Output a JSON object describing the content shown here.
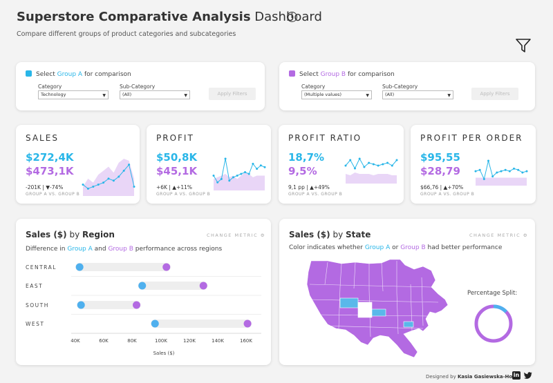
{
  "header": {
    "title_bold": "Superstore Comparative Analysis",
    "title_light": "Dashboard",
    "info_icon": "info-icon",
    "subtitle": "Compare different groups of product categories and subcategories",
    "filter_icon": "funnel-icon"
  },
  "colors": {
    "group_a": "#29b6e8",
    "group_b": "#b36ae2",
    "group_b_fill": "#e9d6f7"
  },
  "group_a_selector": {
    "prefix": "Select",
    "group": "Group A",
    "suffix": "for comparison",
    "category_label": "Category",
    "category_value": "Technology",
    "subcategory_label": "Sub-Category",
    "subcategory_value": "(All)",
    "apply_label": "Apply Filters"
  },
  "group_b_selector": {
    "prefix": "Select",
    "group": "Group B",
    "suffix": "for comparison",
    "category_label": "Category",
    "category_value": "(Multiple values)",
    "subcategory_label": "Sub-Category",
    "subcategory_value": "(All)",
    "apply_label": "Apply Filters"
  },
  "kpis": [
    {
      "title": "SALES",
      "value_a": "$272,4K",
      "value_b": "$473,1K",
      "diff": "-201K | ▼-74%",
      "vs": "GROUP A VS. GROUP B",
      "spark_a": [
        5,
        3,
        4,
        5,
        6,
        8,
        7,
        9,
        12,
        15,
        4
      ],
      "spark_b": [
        4,
        8,
        6,
        10,
        12,
        14,
        11,
        16,
        18,
        17,
        8
      ]
    },
    {
      "title": "PROFIT",
      "value_a": "$50,8K",
      "value_b": "$45,1K",
      "diff": "+6K | ▲+11%",
      "vs": "GROUP A VS. GROUP B",
      "spark_a": [
        8,
        4,
        6,
        18,
        5,
        7,
        8,
        9,
        10,
        9,
        15,
        12,
        14,
        13
      ],
      "spark_b": [
        6,
        7,
        8,
        9,
        7,
        8,
        6,
        8,
        10,
        9,
        7,
        8,
        8,
        8
      ]
    },
    {
      "title": "PROFIT RATIO",
      "value_a": "18,7%",
      "value_b": "9,5%",
      "diff": "9,1 pp | ▲+49%",
      "vs": "GROUP A VS. GROUP B",
      "spark_a": [
        12,
        16,
        10,
        17,
        11,
        14,
        13,
        12,
        13,
        14,
        12,
        16
      ],
      "spark_b": [
        6,
        5,
        7,
        6,
        6,
        6,
        5,
        6,
        6,
        6,
        5,
        5
      ]
    },
    {
      "title": "PROFIT PER ORDER",
      "value_a": "$95,55",
      "value_b": "$28,79",
      "diff": "$66,76 | ▲+70%",
      "vs": "GROUP A VS. GROUP B",
      "spark_a": [
        10,
        11,
        4,
        18,
        6,
        9,
        10,
        11,
        10,
        12,
        11,
        9,
        10
      ],
      "spark_b": [
        5,
        5,
        5,
        5,
        5,
        5,
        5,
        5,
        5,
        5,
        5,
        5,
        5
      ]
    }
  ],
  "region_panel": {
    "title_bold_1": "Sales ($)",
    "title_light": "by",
    "title_bold_2": "Region",
    "change_metric": "CHANGE METRIC",
    "sub_prefix": "Difference in",
    "sub_a": "Group A",
    "sub_mid": "and",
    "sub_b": "Group B",
    "sub_suffix": "performance across regions",
    "axis_title": "Sales ($)",
    "ticks": [
      "40K",
      "60K",
      "80K",
      "100K",
      "120K",
      "140K",
      "160K"
    ]
  },
  "chart_data": {
    "type": "dumbbell",
    "title": "Sales ($) by Region",
    "xlabel": "Sales ($)",
    "xlim": [
      35000,
      165000
    ],
    "categories": [
      "CENTRAL",
      "EAST",
      "SOUTH",
      "WEST"
    ],
    "series": [
      {
        "name": "Group A",
        "values": [
          43000,
          87000,
          44000,
          96000
        ]
      },
      {
        "name": "Group B",
        "values": [
          104000,
          130000,
          83000,
          161000
        ]
      }
    ]
  },
  "state_panel": {
    "title_bold_1": "Sales ($)",
    "title_light": "by",
    "title_bold_2": "State",
    "change_metric": "CHANGE METRIC",
    "sub_prefix": "Color indicates whether",
    "sub_a": "Group A",
    "sub_mid": "or",
    "sub_b": "Group B",
    "sub_suffix": "had better performance",
    "split_label": "Percentage Split:",
    "split_a_fraction": 0.13
  },
  "footer": {
    "prefix": "Designed by",
    "author": "Kasia Gasiewska-Holc",
    "linkedin_icon": "linkedin-icon",
    "twitter_icon": "twitter-icon"
  }
}
